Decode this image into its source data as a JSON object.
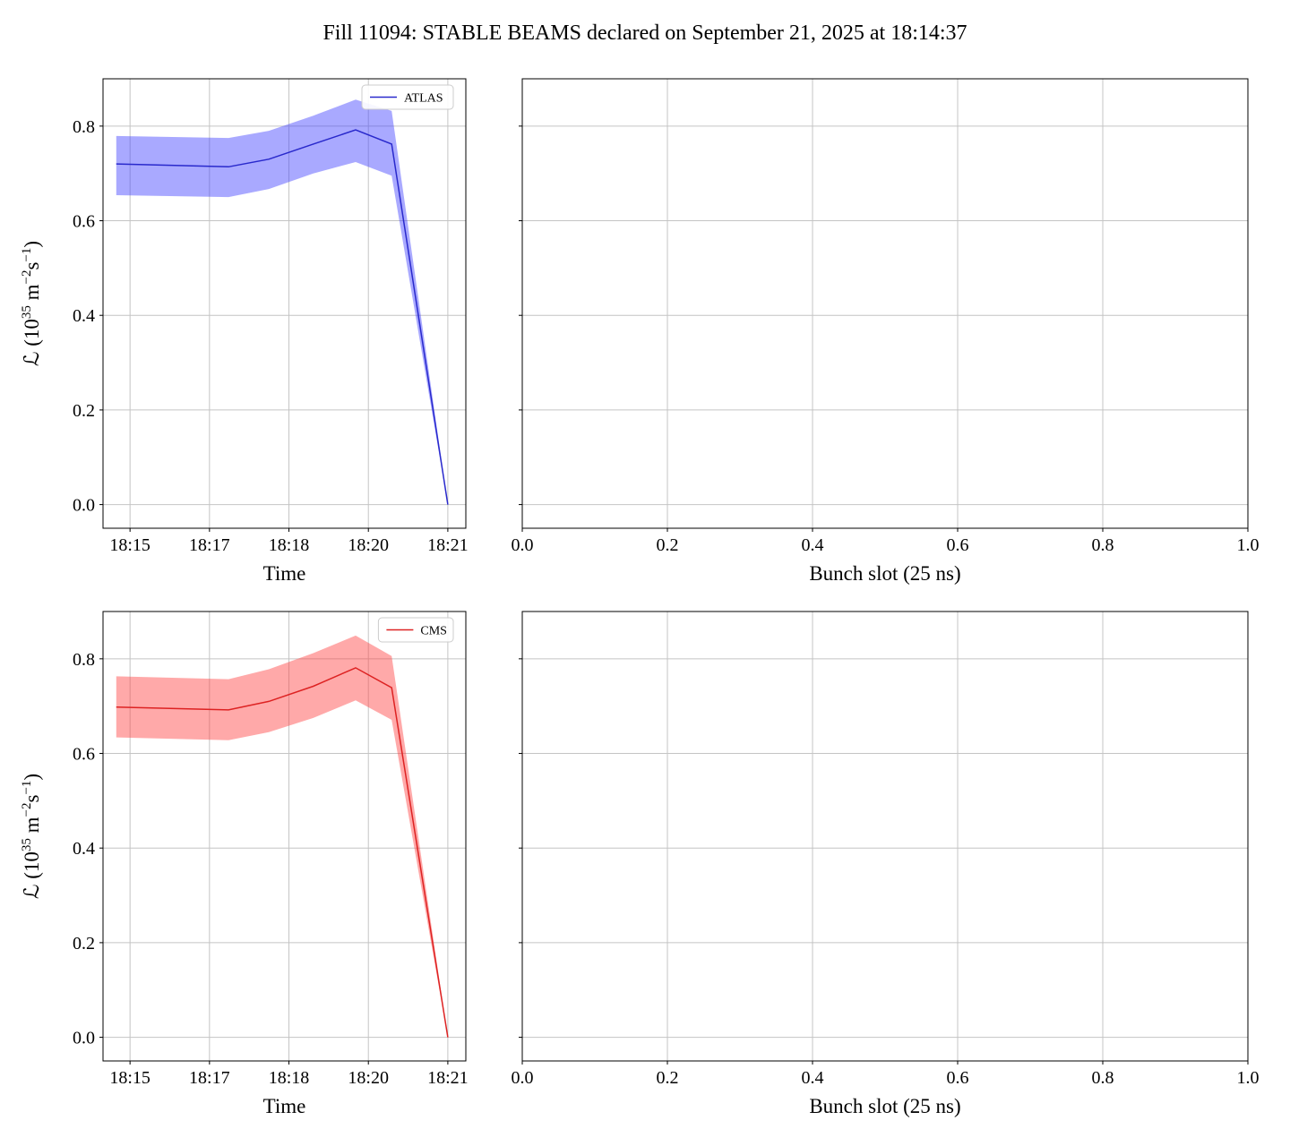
{
  "figure": {
    "title": "Fill 11094: STABLE BEAMS declared on September 21, 2025 at 18:14:37",
    "background": "#ffffff"
  },
  "chart_data": [
    {
      "id": "atlas-luminosity-vs-time",
      "type": "line",
      "xlabel": "Time",
      "ylabel_parts": [
        {
          "text": "ℒ (10"
        },
        {
          "text": "35",
          "sup": true
        },
        {
          "text": " m"
        },
        {
          "text": "−2",
          "sup": true
        },
        {
          "text": "s"
        },
        {
          "text": "−1",
          "sup": true
        },
        {
          "text": ")"
        }
      ],
      "xlim": [
        0.49,
        7.34
      ],
      "ylim": [
        -0.05,
        0.9
      ],
      "xticks": {
        "values": [
          1.0,
          2.5,
          4.0,
          5.5,
          7.0
        ],
        "labels": [
          "18:15",
          "18:17",
          "18:18",
          "18:20",
          "18:21"
        ]
      },
      "yticks": {
        "values": [
          0.0,
          0.2,
          0.4,
          0.6,
          0.8
        ],
        "labels": [
          "0.0",
          "0.2",
          "0.4",
          "0.6",
          "0.8"
        ]
      },
      "grid": true,
      "grid_color": "#c4c4c4",
      "legend": {
        "label": "ATLAS"
      },
      "series": [
        {
          "name": "ATLAS",
          "color": "#2929cc",
          "band_color": "#4040ff",
          "band_opacity": 0.45,
          "x": [
            0.74,
            2.86,
            3.62,
            4.46,
            5.26,
            5.94,
            7.0
          ],
          "y": [
            0.72,
            0.714,
            0.73,
            0.762,
            0.792,
            0.762,
            0.0
          ],
          "y_upper": [
            0.779,
            0.775,
            0.79,
            0.822,
            0.856,
            0.832,
            0.0
          ],
          "y_lower": [
            0.654,
            0.65,
            0.667,
            0.7,
            0.724,
            0.695,
            0.0
          ]
        }
      ]
    },
    {
      "id": "bunch-slot-top",
      "type": "line",
      "xlabel": "Bunch slot (25 ns)",
      "xlim": [
        0.0,
        1.0
      ],
      "ylim": [
        -0.05,
        0.9
      ],
      "xticks": {
        "values": [
          0.0,
          0.2,
          0.4,
          0.6,
          0.8,
          1.0
        ],
        "labels": [
          "0.0",
          "0.2",
          "0.4",
          "0.6",
          "0.8",
          "1.0"
        ]
      },
      "yticks": {
        "values": [
          0.0,
          0.2,
          0.4,
          0.6,
          0.8
        ],
        "labels": []
      },
      "grid": true,
      "grid_color": "#c4c4c4",
      "series": []
    },
    {
      "id": "cms-luminosity-vs-time",
      "type": "line",
      "xlabel": "Time",
      "ylabel_parts": [
        {
          "text": "ℒ (10"
        },
        {
          "text": "35",
          "sup": true
        },
        {
          "text": " m"
        },
        {
          "text": "−2",
          "sup": true
        },
        {
          "text": "s"
        },
        {
          "text": "−1",
          "sup": true
        },
        {
          "text": ")"
        }
      ],
      "xlim": [
        0.49,
        7.34
      ],
      "ylim": [
        -0.05,
        0.9
      ],
      "xticks": {
        "values": [
          1.0,
          2.5,
          4.0,
          5.5,
          7.0
        ],
        "labels": [
          "18:15",
          "18:17",
          "18:18",
          "18:20",
          "18:21"
        ]
      },
      "yticks": {
        "values": [
          0.0,
          0.2,
          0.4,
          0.6,
          0.8
        ],
        "labels": [
          "0.0",
          "0.2",
          "0.4",
          "0.6",
          "0.8"
        ]
      },
      "grid": true,
      "grid_color": "#c4c4c4",
      "legend": {
        "label": "CMS"
      },
      "series": [
        {
          "name": "CMS",
          "color": "#dd2222",
          "band_color": "#ff4040",
          "band_opacity": 0.45,
          "x": [
            0.74,
            2.86,
            3.62,
            4.46,
            5.26,
            5.94,
            7.0
          ],
          "y": [
            0.698,
            0.692,
            0.71,
            0.742,
            0.781,
            0.739,
            0.0
          ],
          "y_upper": [
            0.763,
            0.757,
            0.778,
            0.812,
            0.849,
            0.806,
            0.0
          ],
          "y_lower": [
            0.634,
            0.628,
            0.645,
            0.675,
            0.712,
            0.671,
            0.0
          ]
        }
      ]
    },
    {
      "id": "bunch-slot-bottom",
      "type": "line",
      "xlabel": "Bunch slot (25 ns)",
      "xlim": [
        0.0,
        1.0
      ],
      "ylim": [
        -0.05,
        0.9
      ],
      "xticks": {
        "values": [
          0.0,
          0.2,
          0.4,
          0.6,
          0.8,
          1.0
        ],
        "labels": [
          "0.0",
          "0.2",
          "0.4",
          "0.6",
          "0.8",
          "1.0"
        ]
      },
      "yticks": {
        "values": [
          0.0,
          0.2,
          0.4,
          0.6,
          0.8
        ],
        "labels": []
      },
      "grid": true,
      "grid_color": "#c4c4c4",
      "series": []
    }
  ]
}
